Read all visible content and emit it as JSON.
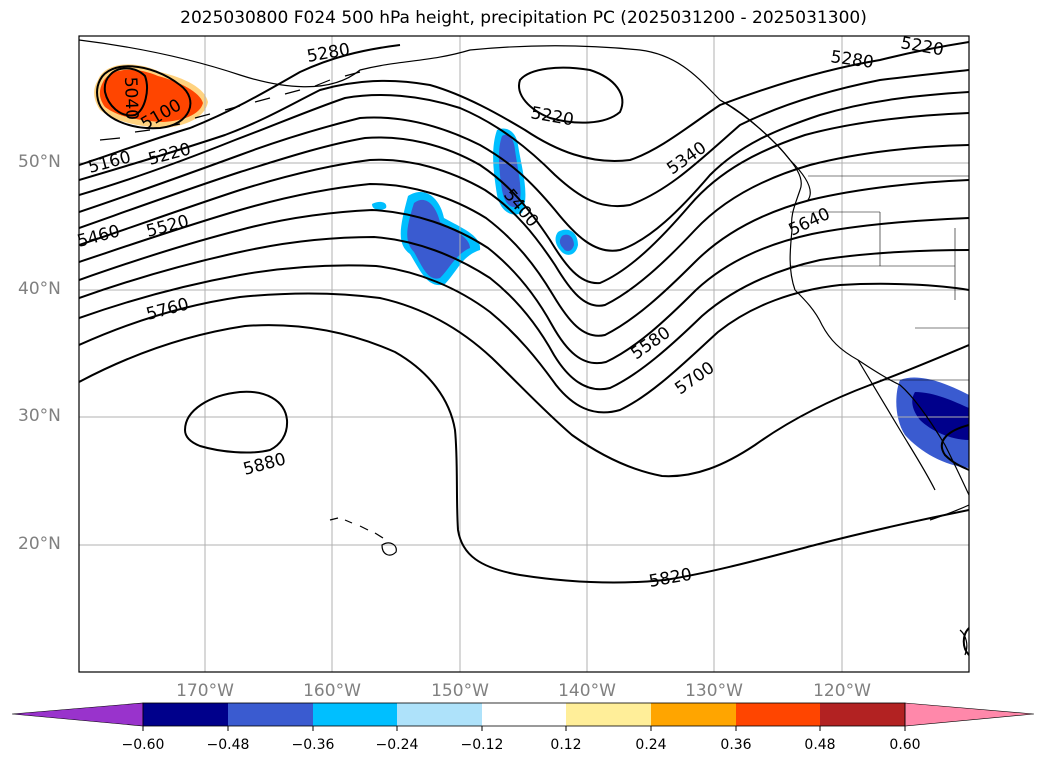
{
  "title": "2025030800 F024 500 hPa height, precipitation PC (2025031200 - 2025031300)",
  "map": {
    "projection": "plate-carree",
    "extent": {
      "lon": [
        -180,
        -110
      ],
      "lat": [
        10,
        60
      ]
    },
    "lat_ticks": [
      {
        "value": 50,
        "label": "50°N"
      },
      {
        "value": 40,
        "label": "40°N"
      },
      {
        "value": 30,
        "label": "30°N"
      },
      {
        "value": 20,
        "label": "20°N"
      }
    ],
    "lon_ticks": [
      {
        "value": -170,
        "label": "170°W"
      },
      {
        "value": -160,
        "label": "160°W"
      },
      {
        "value": -150,
        "label": "150°W"
      },
      {
        "value": -140,
        "label": "140°W"
      },
      {
        "value": -130,
        "label": "130°W"
      },
      {
        "value": -120,
        "label": "120°W"
      }
    ],
    "gridlines": true,
    "contour_color": "#000000",
    "contour_labels": [
      "5280",
      "5220",
      "5040",
      "5100",
      "5160",
      "5220",
      "5340",
      "5400",
      "5460",
      "5520",
      "5640",
      "5760",
      "5580",
      "5700",
      "5880",
      "5820",
      "5220",
      "5280"
    ]
  },
  "colorbar": {
    "labels": [
      "−0.60",
      "−0.48",
      "−0.36",
      "−0.24",
      "−0.12",
      "0.12",
      "0.24",
      "0.36",
      "0.48",
      "0.60"
    ],
    "colors": [
      "#9933cc",
      "#00008b",
      "#3a5bd0",
      "#00bfff",
      "#aee2fa",
      "#ffffff",
      "#ffee99",
      "#ffa500",
      "#ff4500",
      "#b22222",
      "#ff88aa"
    ],
    "extend": "both"
  }
}
